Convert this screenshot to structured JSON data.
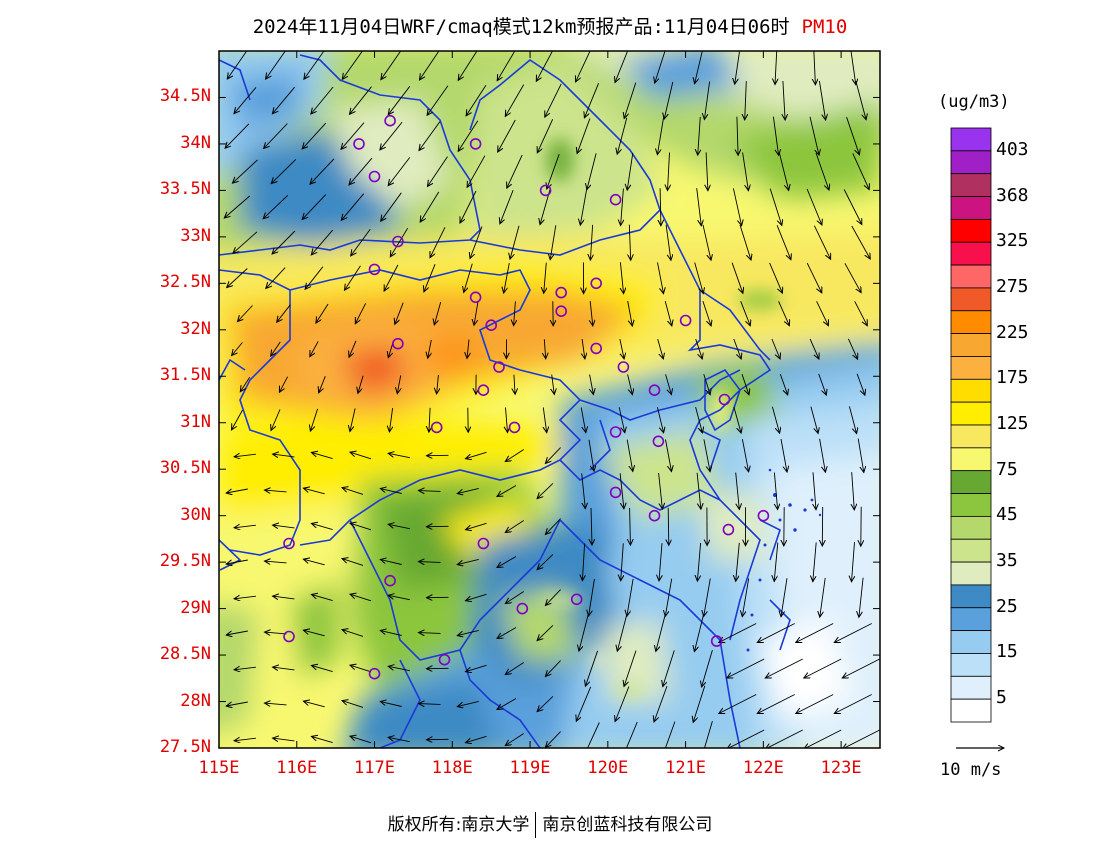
{
  "title": {
    "main": "2024年11月04日WRF/cmaq模式12km预报产品:11月04日06时",
    "variable": "PM10"
  },
  "axes": {
    "lat_labels": [
      "34.5N",
      "34N",
      "33.5N",
      "33N",
      "32.5N",
      "32N",
      "31.5N",
      "31N",
      "30.5N",
      "30N",
      "29.5N",
      "29N",
      "28.5N",
      "28N",
      "27.5N"
    ],
    "lon_labels": [
      "115E",
      "116E",
      "117E",
      "118E",
      "119E",
      "120E",
      "121E",
      "122E",
      "123E"
    ],
    "lat_range": [
      27.5,
      35.0
    ],
    "lon_range": [
      115.0,
      123.5
    ]
  },
  "colorbar": {
    "unit": "(ug/m3)",
    "labels": [
      "403",
      "368",
      "325",
      "275",
      "225",
      "175",
      "125",
      "75",
      "45",
      "35",
      "25",
      "15",
      "5"
    ],
    "colors_top_to_bottom": [
      "#9933ee",
      "#a020c8",
      "#b03060",
      "#cc1480",
      "#ff0000",
      "#f8104c",
      "#ff6666",
      "#f05a28",
      "#ff8c00",
      "#f8a830",
      "#fbb040",
      "#ffdd00",
      "#ffee00",
      "#f8e860",
      "#f8f870",
      "#66a832",
      "#8cc63e",
      "#b4d86c",
      "#cce48c",
      "#e0ecc0",
      "#3d8ac4",
      "#5aa0dc",
      "#96ccf0",
      "#bce0f8",
      "#dff0fc",
      "#ffffff"
    ]
  },
  "wind_reference": {
    "label": "10 m/s"
  },
  "footer": {
    "left": "版权所有:南京大学",
    "right": "南京创蓝科技有限公司"
  },
  "colors": {
    "label_red": "#e00000",
    "boundary_blue": "#1a3ad8",
    "station_purple": "#8000c0"
  },
  "stations": [
    [
      116.8,
      34.0
    ],
    [
      117.2,
      34.25
    ],
    [
      118.3,
      34.0
    ],
    [
      117.0,
      33.65
    ],
    [
      119.2,
      33.5
    ],
    [
      120.1,
      33.4
    ],
    [
      117.3,
      32.95
    ],
    [
      117.0,
      32.65
    ],
    [
      118.3,
      32.35
    ],
    [
      119.4,
      32.4
    ],
    [
      119.85,
      32.5
    ],
    [
      119.4,
      32.2
    ],
    [
      118.5,
      32.05
    ],
    [
      121.0,
      32.1
    ],
    [
      117.3,
      31.85
    ],
    [
      119.85,
      31.8
    ],
    [
      118.6,
      31.6
    ],
    [
      120.2,
      31.6
    ],
    [
      118.4,
      31.35
    ],
    [
      120.6,
      31.35
    ],
    [
      121.5,
      31.25
    ],
    [
      117.8,
      30.95
    ],
    [
      118.8,
      30.95
    ],
    [
      120.1,
      30.9
    ],
    [
      120.65,
      30.8
    ],
    [
      120.1,
      30.25
    ],
    [
      120.6,
      30.0
    ],
    [
      115.9,
      29.7
    ],
    [
      118.4,
      29.7
    ],
    [
      121.55,
      29.85
    ],
    [
      122.0,
      30.0
    ],
    [
      117.2,
      29.3
    ],
    [
      118.9,
      29.0
    ],
    [
      119.6,
      29.1
    ],
    [
      115.9,
      28.7
    ],
    [
      121.4,
      28.65
    ],
    [
      117.9,
      28.45
    ],
    [
      117.0,
      28.3
    ]
  ]
}
